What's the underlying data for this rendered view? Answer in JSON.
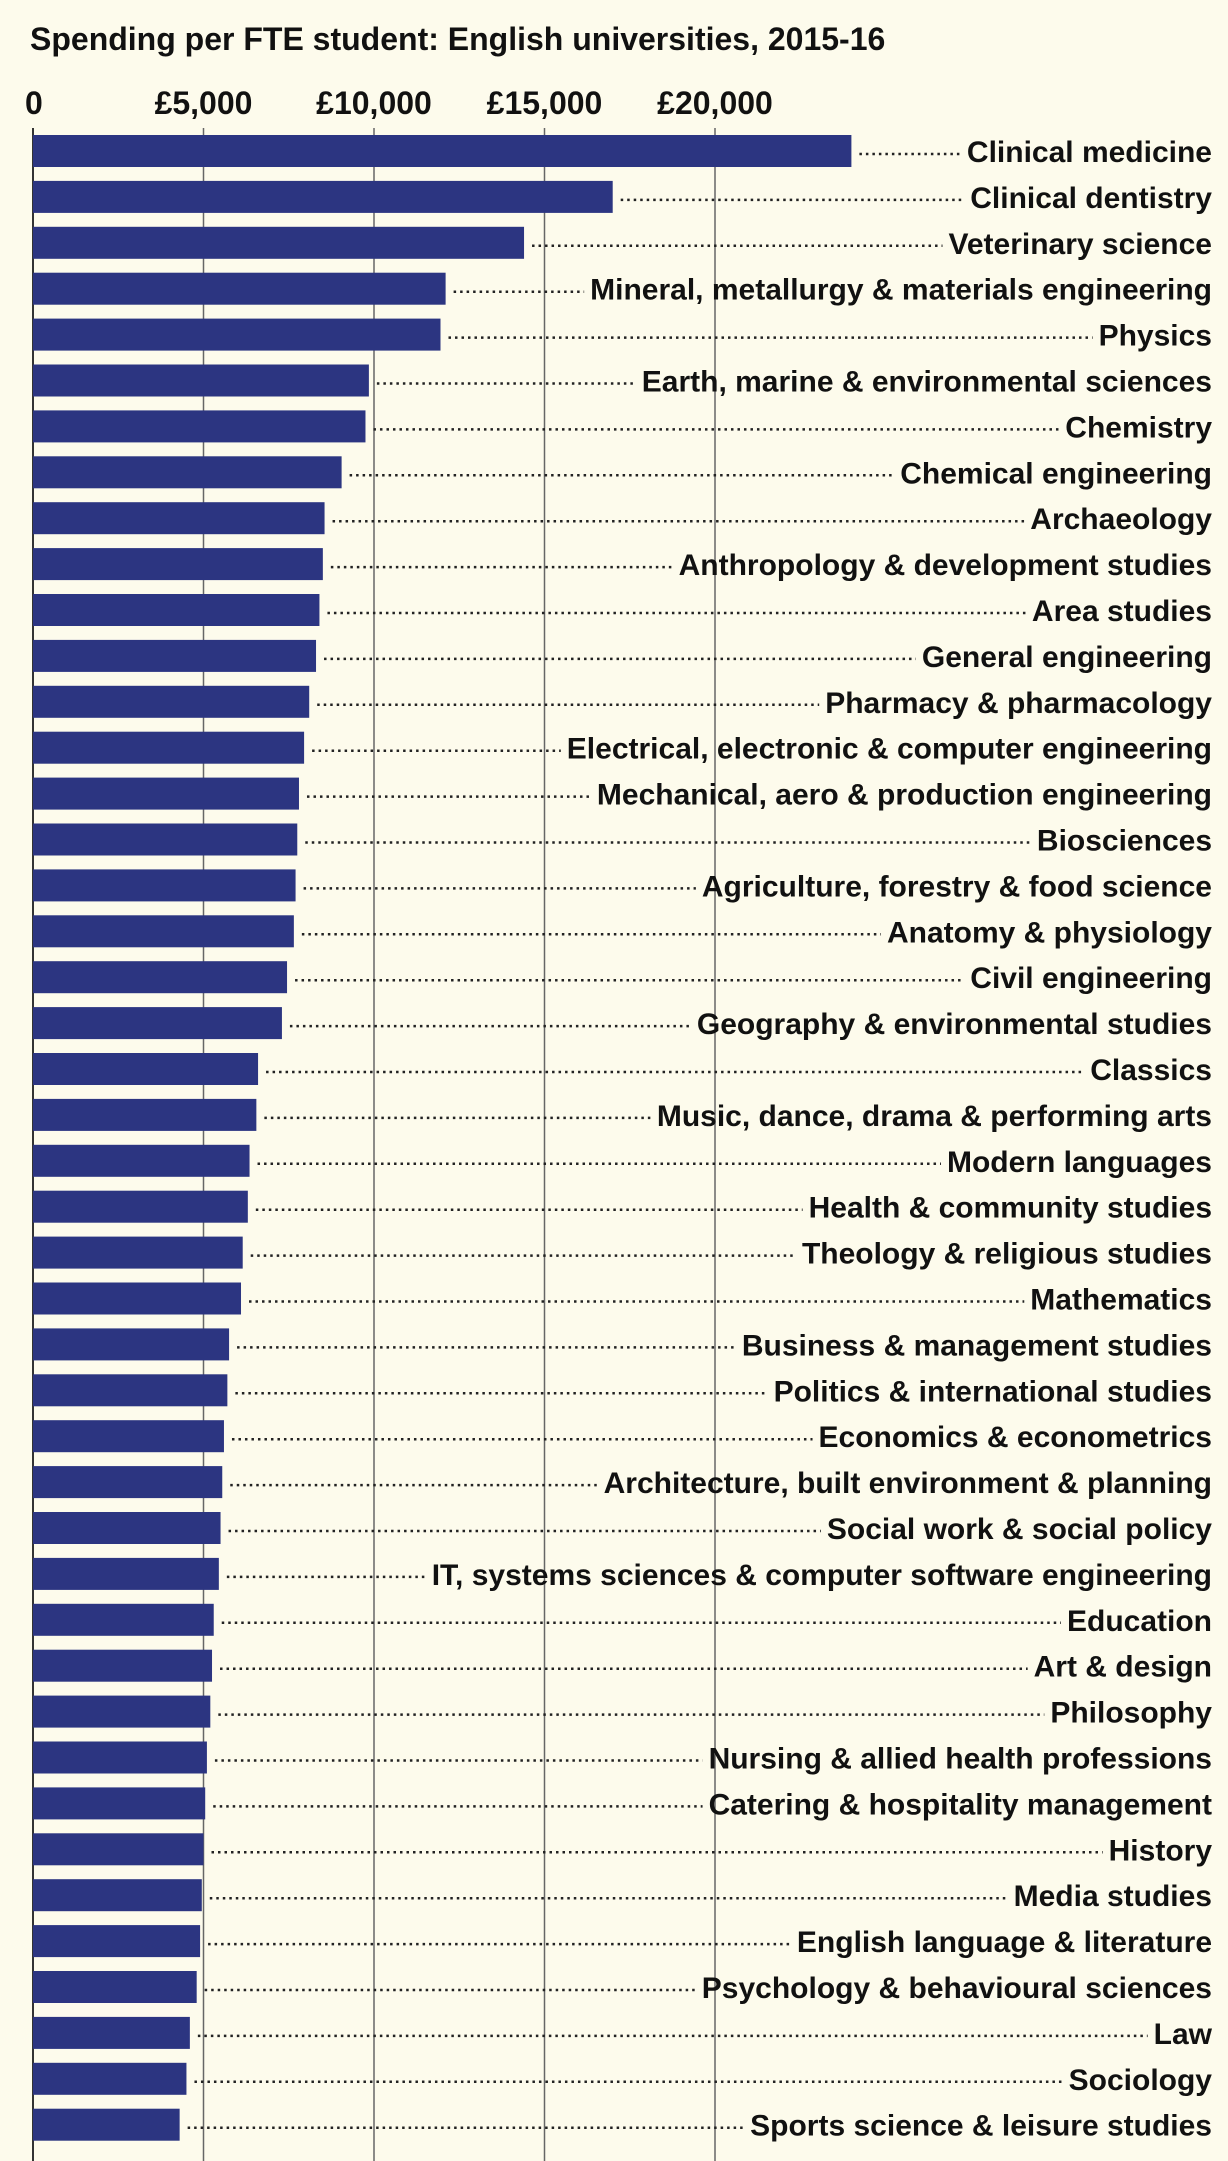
{
  "chart_data": {
    "type": "bar",
    "orientation": "horizontal",
    "title": "Spending per FTE student: English universities, 2015-16",
    "xlabel": "",
    "ylabel": "",
    "xlim": [
      0,
      25000
    ],
    "grid": true,
    "bar_color": "#2c3581",
    "background": "#fdfbec",
    "ticks": [
      {
        "value": 0,
        "label": "0"
      },
      {
        "value": 5000,
        "label": "£5,000"
      },
      {
        "value": 10000,
        "label": "£10,000"
      },
      {
        "value": 15000,
        "label": "£15,000"
      },
      {
        "value": 20000,
        "label": "£20,000"
      }
    ],
    "categories": [
      "Clinical medicine",
      "Clinical dentistry",
      "Veterinary science",
      "Mineral, metallurgy & materials engineering",
      "Physics",
      "Earth, marine & environmental sciences",
      "Chemistry",
      "Chemical engineering",
      "Archaeology",
      "Anthropology & development studies",
      "Area studies",
      "General engineering",
      "Pharmacy & pharmacology",
      "Electrical, electronic & computer engineering",
      "Mechanical, aero & production engineering",
      "Biosciences",
      "Agriculture, forestry & food science",
      "Anatomy & physiology",
      "Civil engineering",
      "Geography & environmental studies",
      "Classics",
      "Music, dance, drama & performing arts",
      "Modern languages",
      "Health & community studies",
      "Theology & religious studies",
      "Mathematics",
      "Business & management studies",
      "Politics & international studies",
      "Economics & econometrics",
      "Architecture, built environment & planning",
      "Social work & social policy",
      "IT, systems sciences & computer software engineering",
      "Education",
      "Art & design",
      "Philosophy",
      "Nursing & allied health professions",
      "Catering & hospitality management",
      "History",
      "Media studies",
      "English language & literature",
      "Psychology & behavioural sciences",
      "Law",
      "Sociology",
      "Sports science & leisure studies"
    ],
    "values": [
      24000,
      17000,
      14400,
      12100,
      11950,
      9850,
      9750,
      9050,
      8550,
      8500,
      8400,
      8300,
      8100,
      7950,
      7800,
      7750,
      7700,
      7650,
      7450,
      7300,
      6600,
      6550,
      6350,
      6300,
      6150,
      6100,
      5750,
      5700,
      5600,
      5550,
      5500,
      5450,
      5300,
      5250,
      5200,
      5100,
      5050,
      5000,
      4950,
      4900,
      4800,
      4600,
      4500,
      4300
    ]
  }
}
